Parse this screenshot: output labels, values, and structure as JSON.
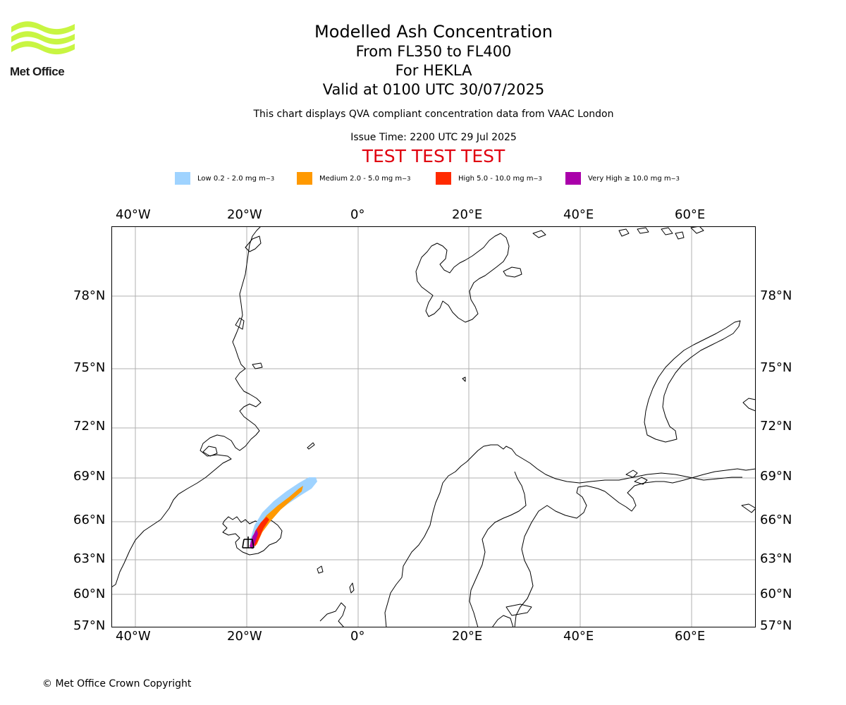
{
  "branding": {
    "logo_text": "Met Office"
  },
  "header": {
    "title": "Modelled Ash Concentration",
    "levels": "From FL350 to FL400",
    "volcano": "For HEKLA",
    "valid": "Valid at 0100 UTC 30/07/2025",
    "description": "This chart displays QVA compliant concentration data from VAAC London",
    "issue_time": "Issue Time: 2200 UTC 29 Jul 2025",
    "test_banner": "TEST TEST TEST"
  },
  "legend": [
    {
      "label": "Low 0.2 - 2.0 mg m",
      "sup": "−3",
      "color": "#9fd3ff"
    },
    {
      "label": "Medium 2.0 - 5.0 mg m",
      "sup": "−3",
      "color": "#ff9900"
    },
    {
      "label": "High 5.0 - 10.0 mg m",
      "sup": "−3",
      "color": "#ff2a00"
    },
    {
      "label": "Very High ≥ 10.0 mg m",
      "sup": "−3",
      "color": "#aa00aa"
    }
  ],
  "map": {
    "lon_range": [
      -44,
      71
    ],
    "lat_range": [
      57,
      81
    ],
    "lon_ticks": [
      "40°W",
      "20°W",
      "0°",
      "20°E",
      "40°E",
      "60°E"
    ],
    "lat_ticks": [
      "78°N",
      "75°N",
      "72°N",
      "69°N",
      "66°N",
      "63°N",
      "60°N",
      "57°N"
    ],
    "volcano_marker": "HEKLA",
    "grid": true
  },
  "footer": {
    "copyright": "© Met Office Crown Copyright"
  }
}
